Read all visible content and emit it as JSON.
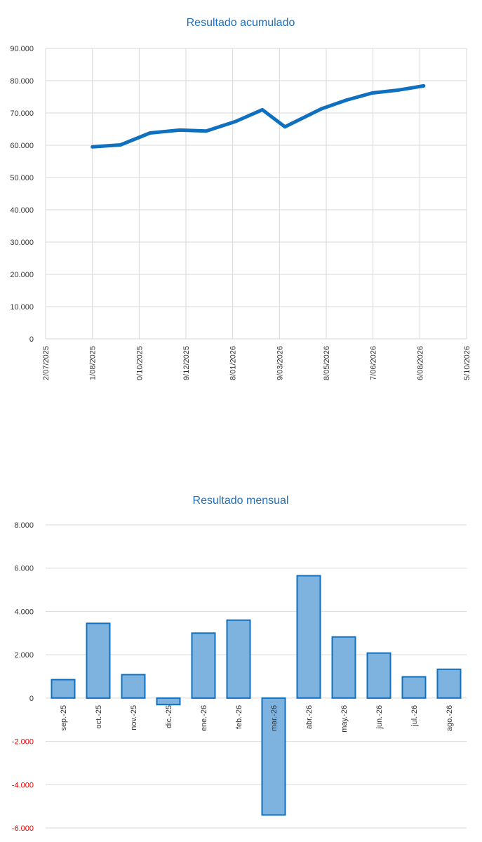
{
  "colors": {
    "title": "#1f6fbf",
    "line": "#0f70c0",
    "bar_fill": "#7fb3df",
    "bar_stroke": "#0f70c0",
    "negative_tick": "#e00000",
    "tick": "#333333",
    "grid": "#d9d9d9"
  },
  "chart_data": [
    {
      "type": "line",
      "title": "Resultado acumulado",
      "xlabel": "",
      "ylabel": "",
      "ylim": [
        0,
        90000
      ],
      "y_ticks": [
        0,
        10000,
        20000,
        30000,
        40000,
        50000,
        60000,
        70000,
        80000,
        90000
      ],
      "y_tick_labels": [
        "0",
        "10.000",
        "20.000",
        "30.000",
        "40.000",
        "50.000",
        "60.000",
        "70.000",
        "80.000",
        "90.000"
      ],
      "x_ticks": [
        0,
        60,
        120,
        180,
        240,
        300,
        360,
        420,
        480,
        540
      ],
      "x_tick_labels": [
        "2/07/2025",
        "1/08/2025",
        "0/10/2025",
        "9/12/2025",
        "8/01/2026",
        "9/03/2026",
        "8/05/2026",
        "7/06/2026",
        "6/08/2026",
        "5/10/2026"
      ],
      "grid": true,
      "series": [
        {
          "x": [
            60,
            96,
            134,
            172,
            206,
            244,
            278,
            307,
            354,
            386,
            419,
            453,
            485
          ],
          "y": [
            59500,
            60100,
            63800,
            64700,
            64400,
            67400,
            71000,
            65700,
            71300,
            74000,
            76200,
            77100,
            78400
          ]
        }
      ]
    },
    {
      "type": "bar",
      "title": "Resultado mensual",
      "xlabel": "",
      "ylabel": "",
      "ylim": [
        -6000,
        8000
      ],
      "y_ticks": [
        -6000,
        -4000,
        -2000,
        0,
        2000,
        4000,
        6000,
        8000
      ],
      "y_tick_labels": [
        "-6.000",
        "-4.000",
        "-2.000",
        "0",
        "2.000",
        "4.000",
        "6.000",
        "8.000"
      ],
      "grid": true,
      "categories": [
        "sep.-25",
        "oct.-25",
        "nov.-25",
        "dic.-25",
        "ene.-26",
        "feb.-26",
        "mar.-26",
        "abr.-26",
        "may.-26",
        "jun.-26",
        "jul.-26",
        "ago.-26"
      ],
      "values": [
        850,
        3450,
        1080,
        -300,
        3000,
        3600,
        -5400,
        5650,
        2820,
        2080,
        980,
        1330
      ]
    }
  ]
}
